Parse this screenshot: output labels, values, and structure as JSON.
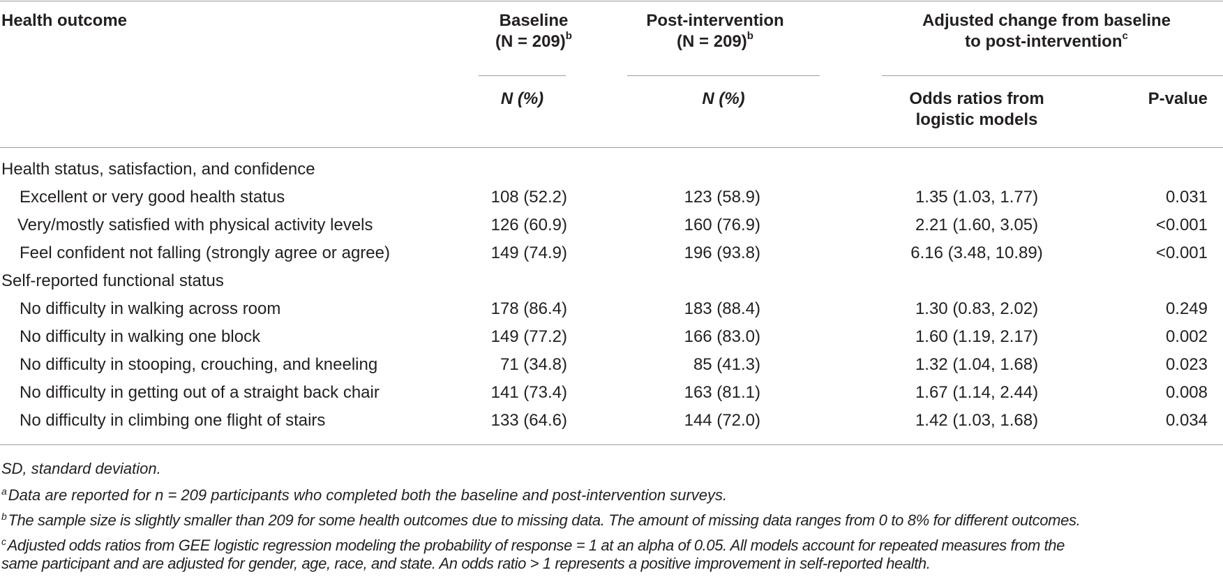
{
  "headers": {
    "health_outcome": "Health outcome",
    "baseline": "Baseline",
    "baseline_n": "(N = 209)",
    "baseline_sup": "b",
    "post": "Post-intervention",
    "post_n": "(N = 209)",
    "post_sup": "b",
    "adjusted_line1": "Adjusted change from baseline",
    "adjusted_line2": "to post-intervention",
    "adjusted_sup": "c",
    "n_pct_baseline": "N (%)",
    "n_pct_post": "N (%)",
    "odds_line1": "Odds ratios from",
    "odds_line2": "logistic models",
    "pvalue": "P-value"
  },
  "sections": [
    {
      "title": "Health status, satisfaction, and confidence",
      "rows": [
        {
          "label": "Excellent or very good health status",
          "baseline": "108 (52.2)",
          "post": "123 (58.9)",
          "odds": "1.35 (1.03, 1.77)",
          "p": "0.031"
        },
        {
          "label": "Very/mostly satisfied with physical activity levels",
          "baseline": "126 (60.9)",
          "post": "160 (76.9)",
          "odds": "2.21 (1.60, 3.05)",
          "p": "<0.001"
        },
        {
          "label": "Feel confident not falling (strongly agree or agree)",
          "baseline": "149 (74.9)",
          "post": "196 (93.8)",
          "odds": "6.16 (3.48, 10.89)",
          "p": "<0.001"
        }
      ]
    },
    {
      "title": "Self-reported functional status",
      "rows": [
        {
          "label": "No difficulty in walking across room",
          "baseline": "178 (86.4)",
          "post": "183 (88.4)",
          "odds": "1.30 (0.83, 2.02)",
          "p": "0.249"
        },
        {
          "label": "No difficulty in walking one block",
          "baseline": "149 (77.2)",
          "post": "166 (83.0)",
          "odds": "1.60 (1.19, 2.17)",
          "p": "0.002"
        },
        {
          "label": "No difficulty in stooping, crouching, and kneeling",
          "baseline": "71 (34.8)",
          "post": "85 (41.3)",
          "odds": "1.32 (1.04, 1.68)",
          "p": "0.023"
        },
        {
          "label": "No difficulty in getting out of a straight back chair",
          "baseline": "141 (73.4)",
          "post": "163 (81.1)",
          "odds": "1.67 (1.14, 2.44)",
          "p": "0.008"
        },
        {
          "label": "No difficulty in climbing one flight of stairs",
          "baseline": "133 (64.6)",
          "post": "144 (72.0)",
          "odds": "1.42 (1.03, 1.68)",
          "p": "0.034"
        }
      ]
    }
  ],
  "footnotes": {
    "sd": "SD, standard deviation.",
    "a_mark": "a",
    "a": "Data are reported for n = 209 participants who completed both the baseline and post-intervention surveys.",
    "b_mark": "b",
    "b": "The sample size is slightly smaller than 209 for some health outcomes due to missing data. The amount of missing data ranges from 0 to 8% for different outcomes.",
    "c_mark": "c",
    "c_line1": "Adjusted odds ratios from GEE logistic regression modeling the probability of response = 1 at an alpha of 0.05. All models account for repeated measures from the",
    "c_line2": "same participant and are adjusted for gender, age, race, and state. An odds ratio > 1 represents a positive improvement in self-reported health."
  }
}
